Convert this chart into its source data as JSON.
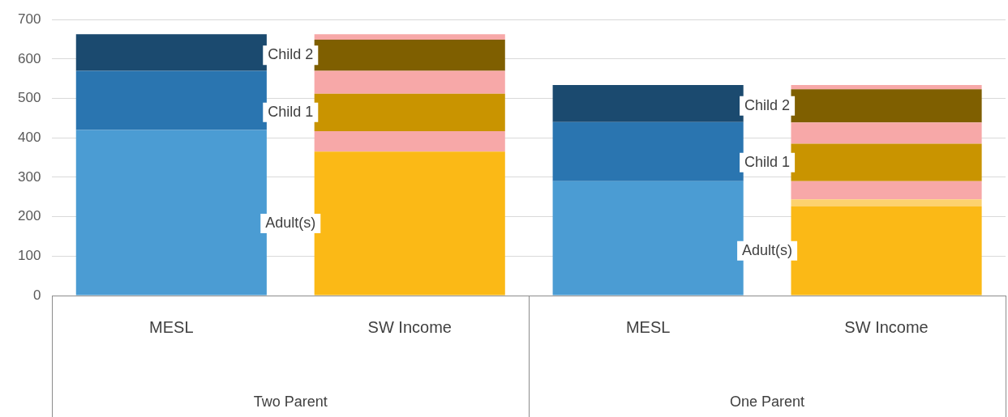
{
  "chart_data": {
    "type": "bar",
    "stacked": true,
    "categories": [
      "MESL",
      "SW Income",
      "MESL",
      "SW Income"
    ],
    "series": [
      {
        "colors": [
          "#4b9cd3",
          "#fbb916",
          "#4b9cd3",
          "#fbb916"
        ],
        "values": [
          420,
          365,
          290,
          226
        ]
      },
      {
        "color": "#fdd26e",
        "values": [
          null,
          null,
          null,
          18
        ]
      },
      {
        "color": "#f7a8a8",
        "values": [
          null,
          52,
          null,
          46
        ]
      },
      {
        "colors": [
          "#2a75b0",
          "#c99400",
          "#2a75b0",
          "#c99400"
        ],
        "values": [
          150,
          95,
          150,
          95
        ]
      },
      {
        "color": "#f7a8a8",
        "values": [
          null,
          58,
          null,
          54
        ]
      },
      {
        "colors": [
          "#1b4a6f",
          "#7f5f00",
          "#1b4a6f",
          "#7f5f00"
        ],
        "values": [
          93,
          79,
          94,
          84
        ]
      },
      {
        "color": "#f7a8a8",
        "values": [
          null,
          14,
          null,
          11
        ]
      }
    ],
    "ylim": [
      0,
      700
    ],
    "yticks": [
      0,
      100,
      200,
      300,
      400,
      500,
      600,
      700
    ],
    "grid": "y",
    "legend": false,
    "annotations": [
      "Child 2",
      "Child 1",
      "Adult(s)",
      "Child 2",
      "Child 1",
      "Adult(s)",
      "Two Parent",
      "One Parent"
    ]
  }
}
